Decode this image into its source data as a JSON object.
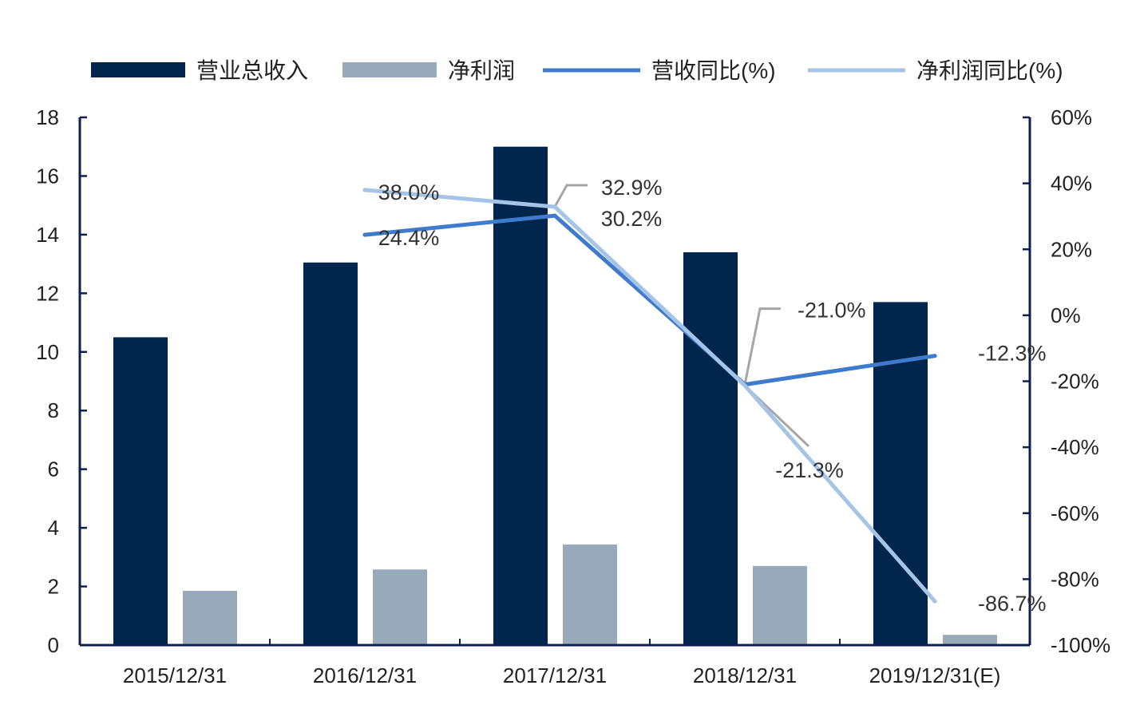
{
  "chart_data": {
    "type": "bar",
    "categories": [
      "2015/12/31",
      "2016/12/31",
      "2017/12/31",
      "2018/12/31",
      "2019/12/31(E)"
    ],
    "series": [
      {
        "name": "营业总收入",
        "type": "bar",
        "axis": "left",
        "color": "#00264d",
        "values": [
          10.5,
          13.05,
          17.0,
          13.4,
          11.7
        ]
      },
      {
        "name": "净利润",
        "type": "bar",
        "axis": "left",
        "color": "#97a9bb",
        "values": [
          1.85,
          2.58,
          3.43,
          2.7,
          0.35
        ]
      },
      {
        "name": "营收同比(%)",
        "type": "line",
        "axis": "right",
        "color": "#3f7bcc",
        "values": [
          null,
          24.4,
          30.2,
          -21.0,
          -12.3
        ]
      },
      {
        "name": "净利润同比(%)",
        "type": "line",
        "axis": "right",
        "color": "#a6c4e6",
        "values": [
          null,
          38.0,
          32.9,
          -21.3,
          -86.7
        ]
      }
    ],
    "left_axis": {
      "ylim": [
        0,
        18
      ],
      "ticks": [
        "0",
        "2",
        "4",
        "6",
        "8",
        "10",
        "12",
        "14",
        "16",
        "18"
      ]
    },
    "right_axis": {
      "ylim": [
        -100,
        60
      ],
      "ticks": [
        "-100%",
        "-80%",
        "-60%",
        "-40%",
        "-20%",
        "0%",
        "20%",
        "40%",
        "60%"
      ]
    },
    "data_labels": [
      {
        "series": 2,
        "index": 1,
        "text": "24.4%"
      },
      {
        "series": 2,
        "index": 2,
        "text": "30.2%"
      },
      {
        "series": 2,
        "index": 3,
        "text": "-21.0%"
      },
      {
        "series": 2,
        "index": 4,
        "text": "-12.3%"
      },
      {
        "series": 3,
        "index": 1,
        "text": "38.0%"
      },
      {
        "series": 3,
        "index": 2,
        "text": "32.9%"
      },
      {
        "series": 3,
        "index": 3,
        "text": "-21.3%"
      },
      {
        "series": 3,
        "index": 4,
        "text": "-86.7%"
      }
    ],
    "legend_position": "top",
    "grid": false
  }
}
